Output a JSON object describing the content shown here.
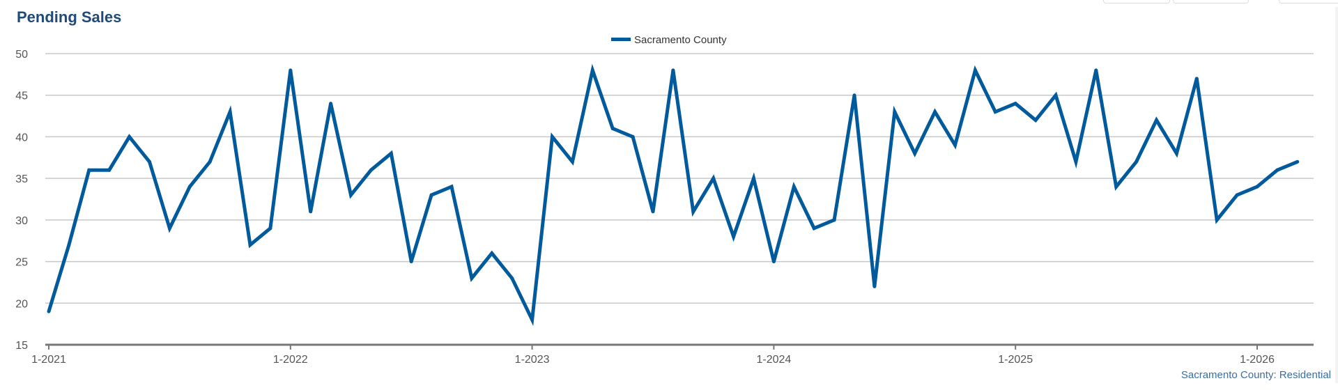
{
  "title": "Pending Sales",
  "footer_label": "Sacramento County: Residential",
  "chart_data": {
    "type": "line",
    "title": "Pending Sales",
    "xlabel": "",
    "ylabel": "",
    "ylim": [
      15,
      50
    ],
    "yticks": [
      15,
      20,
      25,
      30,
      35,
      40,
      45,
      50
    ],
    "xtick_labels": [
      "1-2021",
      "1-2022",
      "1-2023",
      "1-2024",
      "1-2025",
      "1-2026"
    ],
    "start": "1-2021",
    "legend_position": "top-center",
    "grid": true,
    "series": [
      {
        "name": "Sacramento County",
        "color": "#005a9c",
        "values": [
          19,
          27,
          36,
          36,
          40,
          37,
          29,
          34,
          37,
          43,
          27,
          29,
          48,
          31,
          44,
          33,
          36,
          38,
          25,
          33,
          34,
          23,
          26,
          23,
          18,
          40,
          37,
          48,
          41,
          40,
          31,
          48,
          31,
          35,
          28,
          35,
          25,
          34,
          29,
          30,
          45,
          22,
          43,
          38,
          43,
          39,
          48,
          43,
          44,
          42,
          45,
          37,
          48,
          34,
          37,
          42,
          38,
          47,
          30,
          33,
          34,
          36,
          37
        ]
      }
    ]
  }
}
